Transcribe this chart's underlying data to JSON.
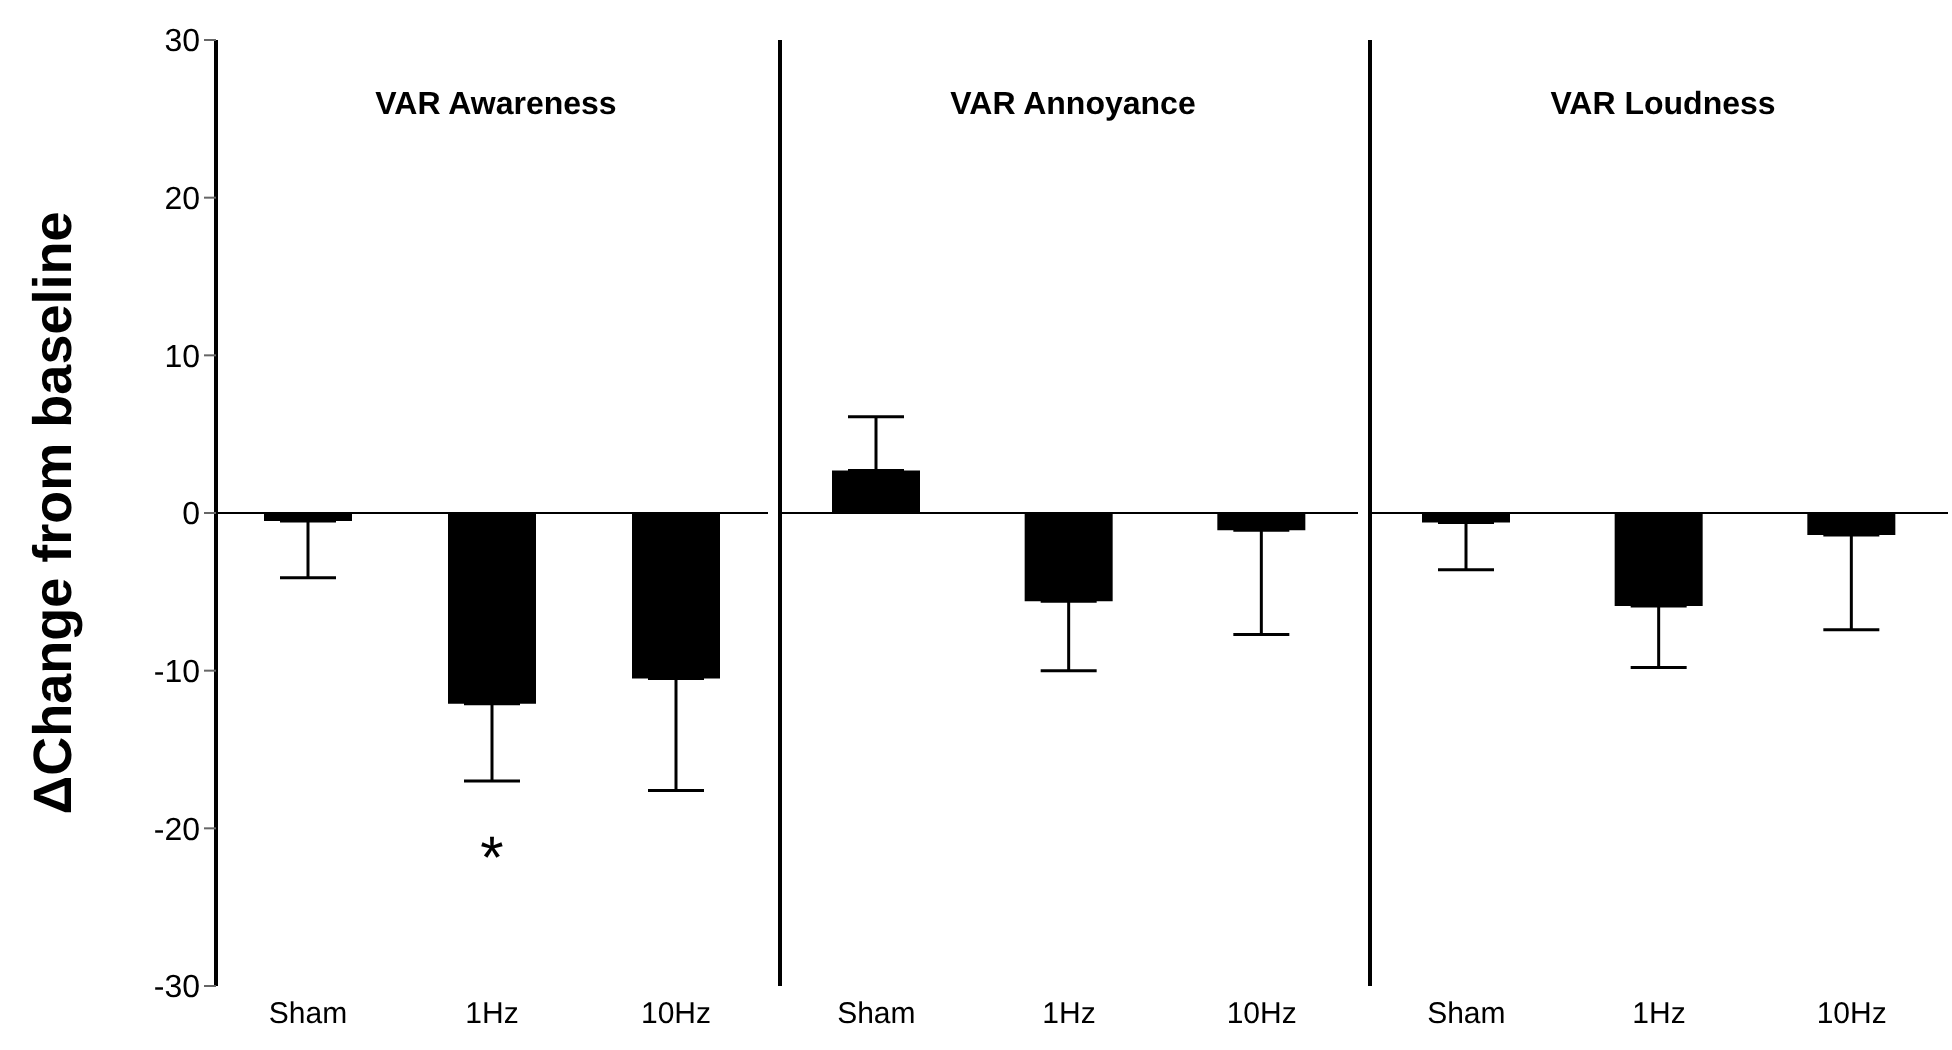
{
  "chart_data": [
    {
      "type": "bar",
      "title": "VAR Awareness",
      "ylabel": "ΔChange from baseline",
      "categories": [
        "Sham",
        "1Hz",
        "10Hz"
      ],
      "values": [
        -0.5,
        -12.1,
        -10.5
      ],
      "errors": [
        [
          -4.1,
          -0.5
        ],
        [
          -17.0,
          -12.1
        ],
        [
          -17.6,
          -10.5
        ]
      ],
      "color": "#000000",
      "ylim": [
        -30,
        30
      ],
      "yticks": [
        -30,
        -20,
        -10,
        0,
        10,
        20,
        30
      ],
      "ref_lines": [
        {
          "axis": "y",
          "value": 0
        }
      ],
      "annotations": [
        "*"
      ]
    },
    {
      "type": "bar",
      "title": "VAR Annoyance",
      "categories": [
        "Sham",
        "1Hz",
        "10Hz"
      ],
      "values": [
        2.7,
        -5.6,
        -1.1
      ],
      "errors": [
        [
          2.7,
          6.1
        ],
        [
          -10.0,
          -5.6
        ],
        [
          -7.7,
          -1.1
        ]
      ],
      "color": "#000000",
      "ylim": [
        -30,
        30
      ],
      "tick_labels": "x",
      "ref_lines": [
        {
          "axis": "y",
          "value": 0
        }
      ]
    },
    {
      "type": "bar",
      "title": "VAR Loudness",
      "categories": [
        "Sham",
        "1Hz",
        "10Hz"
      ],
      "values": [
        -0.6,
        -5.9,
        -1.4
      ],
      "errors": [
        [
          -3.6,
          -0.6
        ],
        [
          -9.8,
          -5.9
        ],
        [
          -7.4,
          -1.4
        ]
      ],
      "color": "#000000",
      "ylim": [
        -30,
        30
      ],
      "tick_labels": "x",
      "ref_lines": [
        {
          "axis": "y",
          "value": 0
        }
      ]
    }
  ]
}
